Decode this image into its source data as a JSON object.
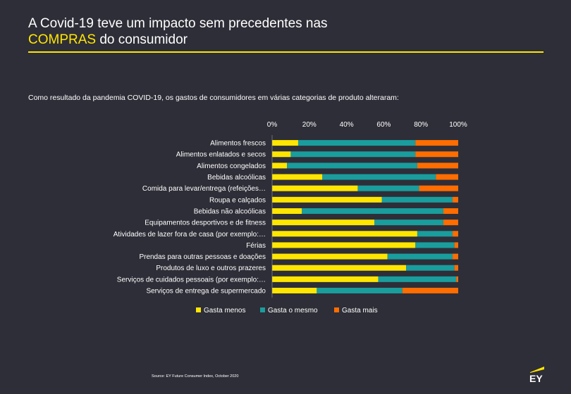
{
  "header": {
    "title_line1": "A Covid-19 teve um impacto sem precedentes nas",
    "title_highlight": "COMPRAS",
    "title_rest": " do consumidor",
    "subtitle": "Como resultado da pandemia COVID-19, os gastos de consumidores em várias categorias de produto alteraram:"
  },
  "footer": {
    "source": "Source: EY Future Consumer Index, October 2020",
    "logo_text": "EY"
  },
  "colors": {
    "background": "#2e2e38",
    "accent": "#ffe600",
    "teal": "#1a9d9d",
    "orange": "#ff6d00"
  },
  "chart_data": {
    "type": "bar",
    "orientation": "horizontal-stacked-100",
    "categories": [
      "Alimentos frescos",
      "Alimentos enlatados e secos",
      "Alimentos congelados",
      "Bebidas alcoólicas",
      "Comida para levar/entrega (refeições…",
      "Roupa e calçados",
      "Bebidas não alcoólicas",
      "Equipamentos desportivos e de fitness",
      "Atividades de lazer fora de casa (por exemplo:…",
      "Férias",
      "Prendas para outras pessoas e doações",
      "Produtos de luxo e outros prazeres",
      "Serviços de cuidados pessoais (por exemplo:…",
      "Serviços de entrega de supermercado"
    ],
    "series": [
      {
        "name": "Gasta menos",
        "color": "#ffe600",
        "values": [
          14,
          10,
          8,
          27,
          46,
          59,
          16,
          55,
          78,
          77,
          62,
          72,
          57,
          24
        ]
      },
      {
        "name": "Gasta o mesmo",
        "color": "#1a9d9d",
        "values": [
          63,
          67,
          70,
          61,
          33,
          38,
          76,
          37,
          19,
          21,
          35,
          26,
          42,
          46
        ]
      },
      {
        "name": "Gasta mais",
        "color": "#ff6d00",
        "values": [
          23,
          23,
          22,
          12,
          21,
          3,
          8,
          8,
          3,
          2,
          3,
          2,
          1,
          30
        ]
      }
    ],
    "xticks": [
      "0%",
      "20%",
      "40%",
      "60%",
      "80%",
      "100%"
    ],
    "xlim": [
      0,
      100
    ],
    "axis_position": "top",
    "legend_position": "bottom"
  }
}
